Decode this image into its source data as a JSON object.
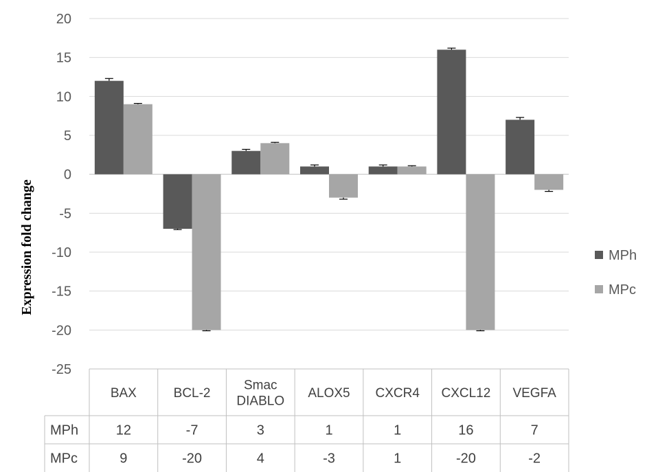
{
  "chart_data": {
    "type": "bar",
    "title": "",
    "xlabel": "",
    "ylabel": "Expression fold change",
    "ylim": [
      -25,
      20
    ],
    "yticks": [
      20,
      15,
      10,
      5,
      0,
      -5,
      -10,
      -15,
      -20,
      -25
    ],
    "categories": [
      [
        "BAX"
      ],
      [
        "BCL-2"
      ],
      [
        "Smac",
        "DIABLO"
      ],
      [
        "ALOX5"
      ],
      [
        "CXCR4"
      ],
      [
        "CXCL12"
      ],
      [
        "VEGFA"
      ]
    ],
    "series": [
      {
        "name": "MPh",
        "color": "#595959",
        "values": [
          12,
          -7,
          3,
          1,
          1,
          16,
          7
        ],
        "errors": [
          0.3,
          0.1,
          0.2,
          0.2,
          0.2,
          0.2,
          0.3
        ]
      },
      {
        "name": "MPc",
        "color": "#a6a6a6",
        "values": [
          9,
          -20,
          4,
          -3,
          1,
          -20,
          -2
        ],
        "errors": [
          0.1,
          0.1,
          0.1,
          0.2,
          0.1,
          0.1,
          0.2
        ]
      }
    ],
    "legend_position": "right",
    "grid": true,
    "data_table": true
  }
}
